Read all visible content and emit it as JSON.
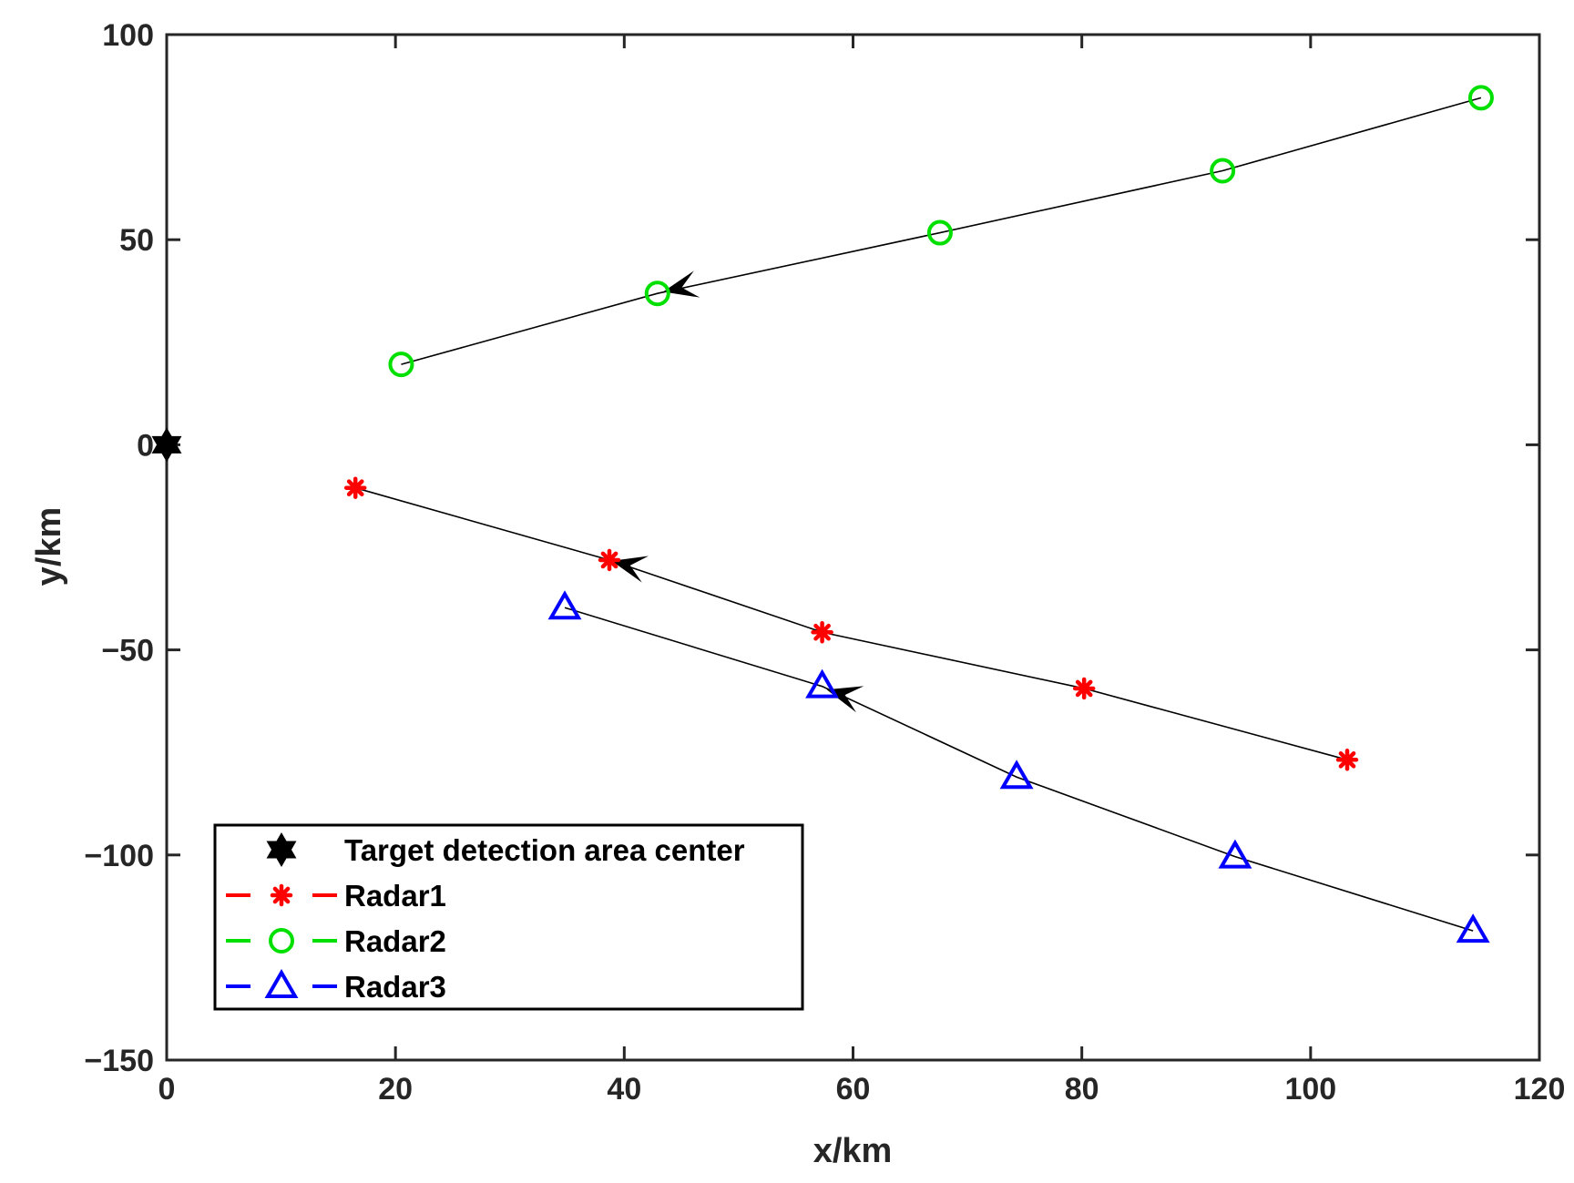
{
  "chart_data": {
    "type": "scatter",
    "title": "",
    "xlabel": "x/km",
    "ylabel": "y/km",
    "xlim": [
      0,
      120
    ],
    "ylim": [
      -150,
      100
    ],
    "xticks": [
      0,
      20,
      40,
      60,
      80,
      100,
      120
    ],
    "yticks": [
      100,
      50,
      0,
      -50,
      -100,
      -150
    ],
    "xtick_labels": [
      "0",
      "20",
      "40",
      "60",
      "80",
      "100",
      "120"
    ],
    "ytick_labels": [
      "100",
      "50",
      "0",
      "−50",
      "−100",
      "−150"
    ],
    "grid": false,
    "legend_position": "bottom-left",
    "center": {
      "name": "Target detection area center",
      "x": 0,
      "y": 0,
      "marker": "hexagram",
      "color": "#000000"
    },
    "series": [
      {
        "name": "Radar1",
        "marker": "asterisk",
        "color": "#ff0000",
        "x": [
          16.5,
          38.7,
          57.3,
          80.2,
          103.2
        ],
        "y": [
          -10.5,
          -28.1,
          -45.7,
          -59.4,
          -76.8
        ],
        "arrow": {
          "from": [
            42.5,
            -30.8
          ],
          "to": [
            38.9,
            -28.3
          ]
        }
      },
      {
        "name": "Radar2",
        "marker": "circle",
        "color": "#00e000",
        "x": [
          20.5,
          42.9,
          67.6,
          92.3,
          114.9
        ],
        "y": [
          19.6,
          36.9,
          51.7,
          66.8,
          84.6
        ],
        "arrow": {
          "from": [
            46.9,
            39.5
          ],
          "to": [
            43.4,
            37.3
          ]
        }
      },
      {
        "name": "Radar3",
        "marker": "triangle",
        "color": "#0000ff",
        "x": [
          34.8,
          57.3,
          74.3,
          93.4,
          114.2
        ],
        "y": [
          -39.7,
          -58.9,
          -81.0,
          -100.4,
          -118.5
        ],
        "arrow": {
          "from": [
            61.3,
            -62.6
          ],
          "to": [
            57.7,
            -59.7
          ]
        }
      }
    ]
  }
}
